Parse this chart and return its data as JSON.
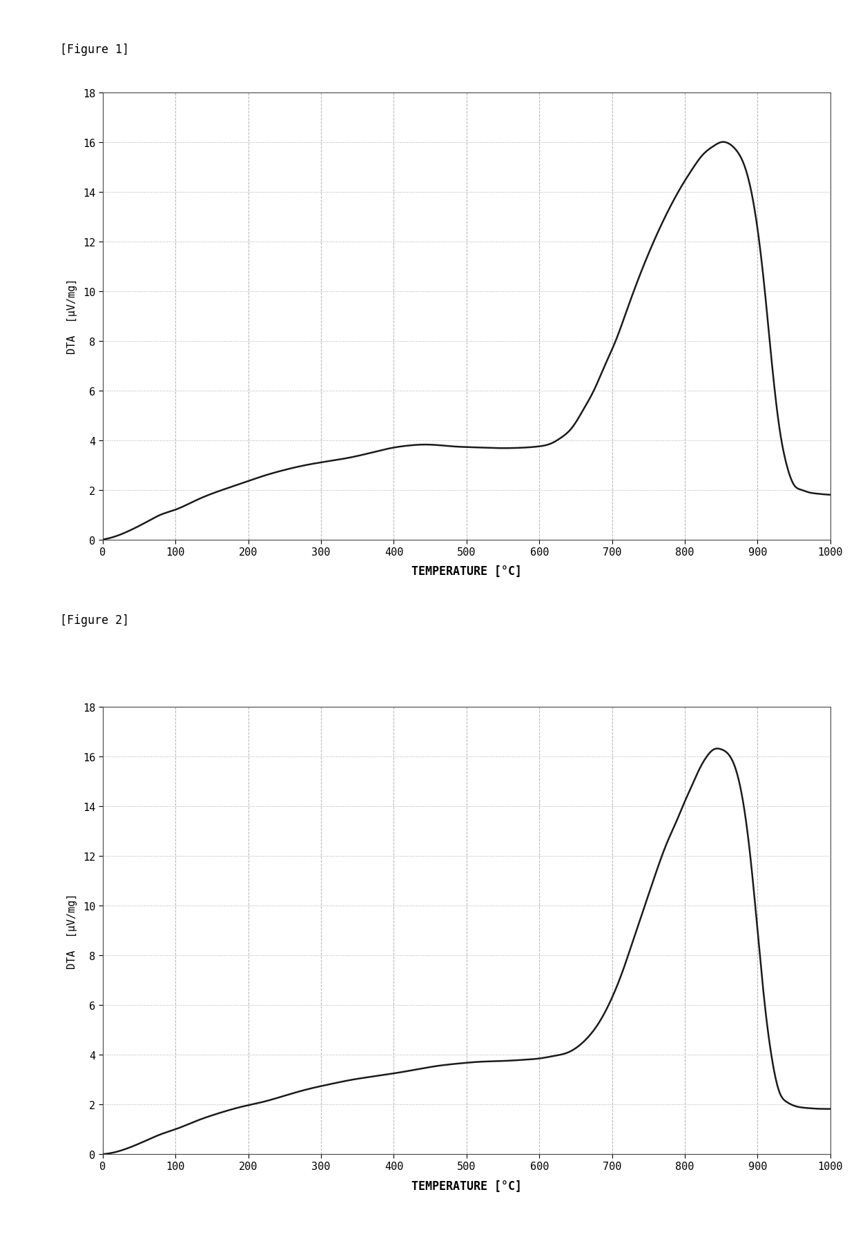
{
  "fig1_label": "[Figure 1]",
  "fig2_label": "[Figure 2]",
  "xlabel": "TEMPERATURE [°C]",
  "ylabel": "DTA  [μV/mg]",
  "xlim": [
    0,
    1000
  ],
  "ylim": [
    0,
    18
  ],
  "xticks": [
    0,
    100,
    200,
    300,
    400,
    500,
    600,
    700,
    800,
    900,
    1000
  ],
  "yticks": [
    0,
    2,
    4,
    6,
    8,
    10,
    12,
    14,
    16,
    18
  ],
  "line_color": "#1a1a1a",
  "line_width": 1.8,
  "bg_color": "#ffffff",
  "grid_color_h": "#aaaaaa",
  "grid_color_v": "#aaaaaa",
  "fig1_x": [
    0,
    20,
    40,
    60,
    80,
    100,
    130,
    160,
    190,
    220,
    250,
    280,
    310,
    340,
    370,
    400,
    420,
    440,
    460,
    480,
    500,
    520,
    540,
    560,
    580,
    600,
    615,
    630,
    645,
    660,
    675,
    690,
    705,
    720,
    735,
    750,
    765,
    780,
    795,
    810,
    825,
    840,
    850,
    860,
    870,
    880,
    890,
    900,
    910,
    920,
    930,
    940,
    950,
    960,
    970,
    980,
    990,
    1000
  ],
  "fig1_y": [
    0.0,
    0.15,
    0.4,
    0.7,
    1.0,
    1.2,
    1.6,
    1.95,
    2.25,
    2.55,
    2.8,
    3.0,
    3.15,
    3.3,
    3.5,
    3.7,
    3.78,
    3.82,
    3.8,
    3.75,
    3.72,
    3.7,
    3.68,
    3.68,
    3.7,
    3.75,
    3.85,
    4.1,
    4.5,
    5.2,
    6.0,
    7.0,
    8.0,
    9.2,
    10.4,
    11.5,
    12.5,
    13.4,
    14.2,
    14.9,
    15.5,
    15.85,
    16.0,
    15.95,
    15.7,
    15.2,
    14.2,
    12.5,
    10.0,
    7.0,
    4.5,
    3.0,
    2.2,
    2.0,
    1.9,
    1.85,
    1.82,
    1.8
  ],
  "fig2_x": [
    0,
    20,
    40,
    60,
    80,
    100,
    130,
    160,
    190,
    220,
    250,
    280,
    310,
    340,
    370,
    400,
    430,
    460,
    490,
    520,
    550,
    580,
    600,
    620,
    640,
    660,
    680,
    700,
    715,
    730,
    745,
    760,
    775,
    790,
    800,
    810,
    820,
    830,
    840,
    850,
    860,
    870,
    880,
    890,
    900,
    910,
    920,
    930,
    940,
    950,
    960,
    970,
    980,
    990,
    1000
  ],
  "fig2_y": [
    0.0,
    0.1,
    0.3,
    0.55,
    0.8,
    1.0,
    1.35,
    1.65,
    1.9,
    2.1,
    2.35,
    2.6,
    2.8,
    2.98,
    3.12,
    3.25,
    3.4,
    3.55,
    3.65,
    3.72,
    3.75,
    3.8,
    3.85,
    3.95,
    4.1,
    4.5,
    5.2,
    6.3,
    7.4,
    8.7,
    10.0,
    11.3,
    12.5,
    13.5,
    14.2,
    14.85,
    15.5,
    16.0,
    16.3,
    16.3,
    16.1,
    15.5,
    14.2,
    12.0,
    9.0,
    6.0,
    3.8,
    2.5,
    2.1,
    1.95,
    1.88,
    1.85,
    1.83,
    1.82,
    1.82
  ]
}
